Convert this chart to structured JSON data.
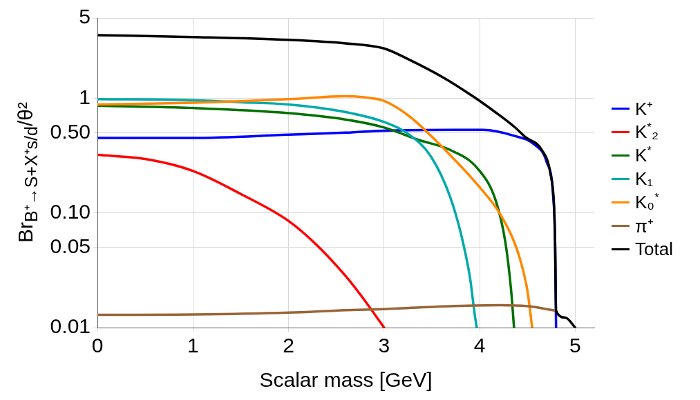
{
  "chart_data": {
    "type": "line",
    "xlabel": "Scalar mass [GeV]",
    "ylabel": "Br$_{B⁺→S+X⁺s/d}$/θ²",
    "xlim": [
      0,
      5.2
    ],
    "xticks": [
      0,
      1,
      2,
      3,
      4,
      5
    ],
    "ylim": [
      0.01,
      5
    ],
    "yticks": [
      0.01,
      0.05,
      {
        "value": 0.1,
        "label": "0.10"
      },
      {
        "value": 0.5,
        "label": "0.50"
      },
      1,
      5
    ],
    "log": "y",
    "grid": true,
    "legend": "right",
    "marker": "none",
    "line_style": "solid",
    "series": [
      {
        "name": "K⁺",
        "color": "#0000ff",
        "x": [
          0,
          1,
          2,
          2.6,
          3.0,
          3.73,
          4.03,
          4.36,
          4.58,
          4.7,
          4.77,
          4.79,
          4.8
        ],
        "values": [
          0.45,
          0.45,
          0.48,
          0.5,
          0.52,
          0.53,
          0.53,
          0.47,
          0.39,
          0.28,
          0.139,
          0.055,
          0.01
        ]
      },
      {
        "name": "K$^{*}$₂",
        "color": "#ff0000",
        "x": [
          0,
          0.5,
          1,
          1.5,
          2,
          2.3,
          2.6,
          2.77,
          3.0
        ],
        "values": [
          0.32,
          0.295,
          0.232,
          0.146,
          0.085,
          0.052,
          0.028,
          0.0185,
          0.01
        ]
      },
      {
        "name": "K$^{*}$",
        "color": "#007000",
        "x": [
          0,
          1,
          2,
          2.6,
          3.0,
          3.37,
          3.69,
          3.98,
          4.17,
          4.27,
          4.33,
          4.36
        ],
        "values": [
          0.86,
          0.82,
          0.74,
          0.65,
          0.555,
          0.43,
          0.354,
          0.243,
          0.127,
          0.055,
          0.021,
          0.01
        ]
      },
      {
        "name": "K₁",
        "color": "#00aaaa",
        "x": [
          0,
          1,
          1.5,
          2,
          2.6,
          3.0,
          3.25,
          3.49,
          3.69,
          3.81,
          3.9,
          3.95,
          3.97
        ],
        "values": [
          0.98,
          0.96,
          0.92,
          0.88,
          0.755,
          0.62,
          0.49,
          0.31,
          0.139,
          0.063,
          0.027,
          0.0128,
          0.01
        ]
      },
      {
        "name": "K₀$^{*}$",
        "color": "#ff8800",
        "x": [
          0,
          1,
          1.5,
          2,
          2.6,
          2.77,
          3.0,
          3.25,
          3.49,
          3.73,
          3.98,
          4.22,
          4.41,
          4.5,
          4.55
        ],
        "values": [
          0.88,
          0.91,
          0.94,
          0.98,
          1.04,
          1.02,
          0.945,
          0.71,
          0.47,
          0.295,
          0.175,
          0.096,
          0.043,
          0.021,
          0.01
        ]
      },
      {
        "name": "π⁺",
        "color": "#9a6535",
        "x": [
          0,
          1,
          2,
          2.6,
          3.0,
          3.73,
          4.22,
          4.53,
          4.7,
          4.8
        ],
        "values": [
          0.0129,
          0.013,
          0.0135,
          0.0142,
          0.0145,
          0.0154,
          0.0157,
          0.0153,
          0.0145,
          0.014
        ]
      },
      {
        "name": "Total",
        "color": "#000000",
        "x": [
          0,
          1,
          2,
          2.6,
          3.0,
          3.25,
          3.62,
          3.95,
          4.17,
          4.36,
          4.48,
          4.65,
          4.74,
          4.78,
          4.79,
          4.8,
          4.9,
          5.0
        ],
        "values": [
          3.54,
          3.41,
          3.22,
          3.0,
          2.71,
          2.19,
          1.51,
          1.01,
          0.748,
          0.565,
          0.457,
          0.354,
          0.222,
          0.11,
          0.0547,
          0.014,
          0.0122,
          0.01
        ]
      }
    ]
  }
}
